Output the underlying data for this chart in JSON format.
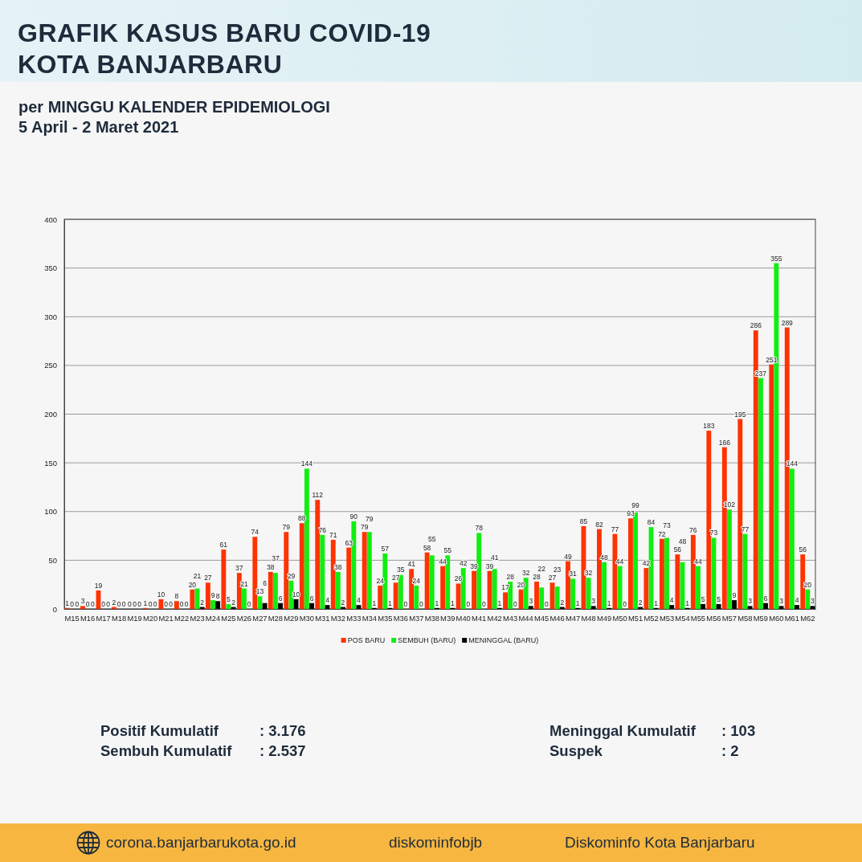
{
  "chart_data": {
    "type": "bar",
    "title": "GRAFIK KASUS BARU COVID-19\nKOTA BANJARBARU",
    "subtitle": "per MINGGU KALENDER EPIDEMIOLOGI\n5 April - 2 Maret 2021",
    "categories": [
      "M15",
      "M16",
      "M17",
      "M18",
      "M19",
      "M20",
      "M21",
      "M22",
      "M23",
      "M24",
      "M25",
      "M26",
      "M27",
      "M28",
      "M29",
      "M30",
      "M31",
      "M32",
      "M33",
      "M34",
      "M35",
      "M36",
      "M37",
      "M38",
      "M39",
      "M40",
      "M41",
      "M42",
      "M43",
      "M44",
      "M45",
      "M46",
      "M47",
      "M48",
      "M49",
      "M50",
      "M51",
      "M52",
      "M53",
      "M54",
      "M55",
      "M56",
      "M57",
      "M58",
      "M59",
      "M60",
      "M61",
      "M62"
    ],
    "series": [
      {
        "name": "POS BARU",
        "color": "#ff3300",
        "values": [
          1,
          3,
          19,
          2,
          0,
          1,
          10,
          8,
          20,
          27,
          61,
          37,
          74,
          38,
          79,
          88,
          112,
          71,
          63,
          79,
          24,
          27,
          41,
          58,
          44,
          26,
          39,
          39,
          17,
          20,
          28,
          27,
          49,
          85,
          82,
          77,
          93,
          42,
          72,
          56,
          76,
          183,
          166,
          195,
          286,
          251,
          289,
          56
        ]
      },
      {
        "name": "SEMBUH (BARU)",
        "color": "#11ee11",
        "values": [
          0,
          0,
          0,
          0,
          0,
          0,
          0,
          0,
          21,
          9,
          5,
          21,
          13,
          37,
          29,
          144,
          76,
          38,
          90,
          79,
          57,
          35,
          24,
          55,
          55,
          42,
          78,
          41,
          28,
          32,
          22,
          23,
          31,
          32,
          48,
          44,
          99,
          84,
          73,
          48,
          44,
          73,
          102,
          77,
          237,
          355,
          144,
          20
        ]
      },
      {
        "name": "MENINGGAL (BARU)",
        "color": "#000000",
        "values": [
          0,
          0,
          0,
          0,
          0,
          0,
          0,
          0,
          2,
          8,
          2,
          0,
          6,
          6,
          10,
          6,
          4,
          2,
          4,
          1,
          1,
          0,
          0,
          1,
          1,
          0,
          0,
          1,
          0,
          3,
          0,
          2,
          1,
          3,
          1,
          0,
          2,
          1,
          4,
          1,
          5,
          5,
          9,
          3,
          6,
          3,
          4,
          3
        ]
      }
    ],
    "ylim": [
      0,
      400
    ],
    "yticks": [
      0,
      50,
      100,
      150,
      200,
      250,
      300,
      350,
      400
    ],
    "grid": "y",
    "legend": "bottom",
    "data_labels": true,
    "annotations": [
      "Positif Kumulatif : 3.176",
      "Sembuh Kumulatif : 2.537",
      "Meninggal Kumulatif : 103",
      "Suspek : 2",
      "corona.banjarbarukota.go.id",
      "diskominfobjb",
      "Diskominfo Kota Banjarbaru"
    ]
  }
}
